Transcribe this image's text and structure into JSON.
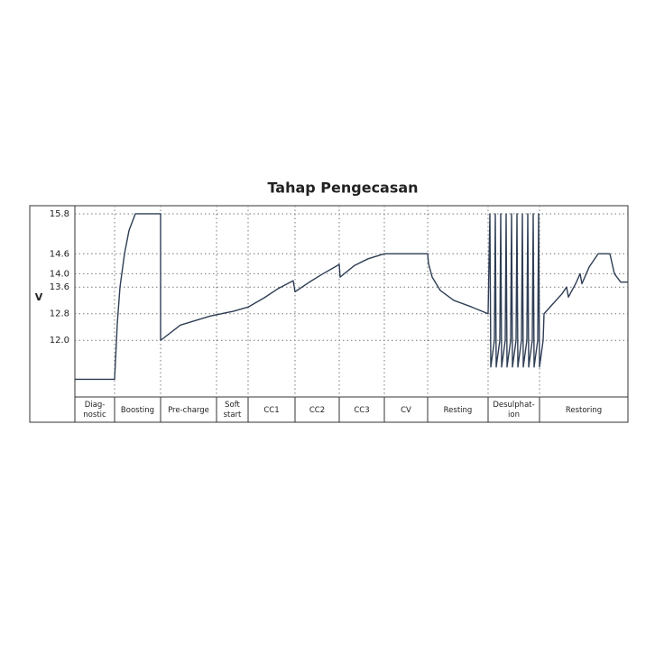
{
  "chart_data": {
    "type": "line",
    "title": "Tahap Pengecasan",
    "y_label": "V",
    "categories": [
      "Diag-\nnostic",
      "Boosting",
      "Pre-charge",
      "Soft\nstart",
      "CC1",
      "CC2",
      "CC3",
      "CV",
      "Resting",
      "Desulphat-\nion",
      "Restoring"
    ],
    "color": "#2f3e55",
    "ylim": [
      10.3,
      16.0
    ],
    "xlim": [
      0,
      613
    ],
    "yticks": [
      {
        "value": 12,
        "label": "12.0"
      },
      12.8,
      13.6,
      {
        "value": 14,
        "label": "14.0"
      },
      14.6,
      15.8
    ],
    "grid": true,
    "x": [
      0,
      44,
      47,
      50,
      55,
      60,
      67,
      95,
      95,
      117,
      150,
      175,
      192,
      210,
      225,
      242,
      244,
      260,
      275,
      293,
      294,
      310,
      325,
      343,
      391,
      392,
      396,
      405,
      420,
      440,
      458,
      460,
      461,
      465,
      466,
      467,
      471,
      472,
      473,
      477,
      478,
      479,
      483,
      484,
      485,
      489,
      490,
      491,
      495,
      496,
      497,
      501,
      502,
      503,
      507,
      508,
      509,
      513,
      514,
      515,
      519,
      520,
      530,
      540,
      545,
      547,
      555,
      560,
      562,
      570,
      580,
      593,
      598,
      605,
      613
    ],
    "values": [
      10.83,
      10.83,
      12.5,
      13.6,
      14.6,
      15.3,
      15.8,
      15.8,
      12.0,
      12.46,
      12.73,
      12.87,
      13.0,
      13.28,
      13.55,
      13.79,
      13.46,
      13.75,
      14.0,
      14.28,
      13.9,
      14.25,
      14.45,
      14.6,
      14.6,
      14.3,
      13.9,
      13.5,
      13.2,
      13.0,
      12.8,
      15.8,
      11.2,
      12.0,
      15.8,
      11.2,
      12.0,
      15.8,
      11.2,
      12.0,
      15.8,
      11.2,
      12.0,
      15.8,
      11.2,
      12.0,
      15.8,
      11.2,
      12.0,
      15.8,
      11.2,
      12.0,
      15.8,
      11.2,
      12.0,
      15.8,
      11.2,
      12.0,
      15.8,
      11.2,
      12.0,
      12.8,
      13.1,
      13.4,
      13.6,
      13.3,
      13.7,
      14.0,
      13.7,
      14.2,
      14.6,
      14.6,
      14.0,
      13.75,
      13.75
    ]
  }
}
